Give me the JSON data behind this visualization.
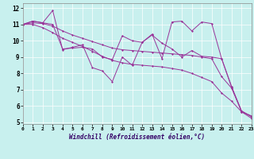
{
  "xlabel": "Windchill (Refroidissement éolien,°C)",
  "bg_color": "#c8f0ee",
  "line_color": "#993399",
  "grid_color": "#ffffff",
  "xlim": [
    0,
    23
  ],
  "ylim": [
    4.9,
    12.3
  ],
  "yticks": [
    5,
    6,
    7,
    8,
    9,
    10,
    11,
    12
  ],
  "xticks": [
    0,
    1,
    2,
    3,
    4,
    5,
    6,
    7,
    8,
    9,
    10,
    11,
    12,
    13,
    14,
    15,
    16,
    17,
    18,
    19,
    20,
    21,
    22,
    23
  ],
  "series": [
    [
      11.0,
      11.2,
      11.1,
      11.85,
      9.45,
      9.6,
      9.75,
      8.35,
      8.15,
      7.5,
      9.0,
      8.5,
      9.9,
      10.4,
      8.9,
      11.15,
      11.2,
      10.6,
      11.15,
      11.05,
      8.9,
      7.2,
      5.7,
      5.35
    ],
    [
      11.0,
      11.2,
      11.1,
      11.0,
      9.5,
      9.55,
      9.6,
      9.5,
      9.0,
      8.85,
      10.3,
      10.0,
      9.9,
      10.35,
      9.85,
      9.5,
      9.0,
      9.4,
      9.05,
      9.0,
      8.9,
      7.15,
      5.65,
      5.4
    ],
    [
      11.0,
      11.1,
      11.05,
      10.9,
      10.6,
      10.35,
      10.15,
      9.95,
      9.75,
      9.55,
      9.45,
      9.4,
      9.35,
      9.3,
      9.25,
      9.2,
      9.15,
      9.1,
      9.0,
      8.9,
      7.8,
      7.1,
      5.7,
      5.35
    ],
    [
      11.0,
      11.0,
      10.8,
      10.5,
      10.15,
      9.9,
      9.65,
      9.35,
      9.05,
      8.8,
      8.65,
      8.55,
      8.5,
      8.45,
      8.4,
      8.3,
      8.2,
      8.0,
      7.75,
      7.5,
      6.8,
      6.3,
      5.65,
      5.25
    ]
  ]
}
